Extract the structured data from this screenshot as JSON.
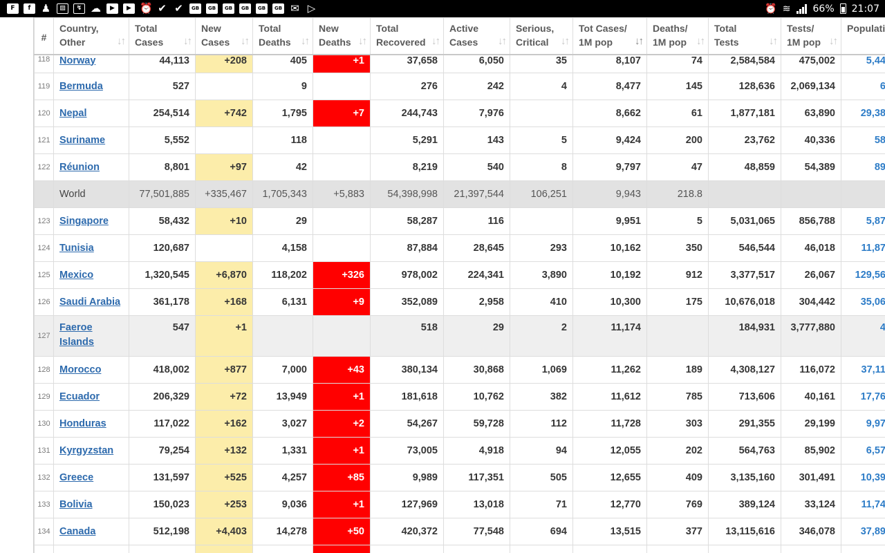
{
  "status_bar": {
    "left_icons": [
      "flipboard-icon",
      "facebook-icon",
      "person-icon",
      "gallery-icon",
      "missed-call-icon",
      "cloud-icon",
      "youtube-icon",
      "youtube-icon",
      "alarm-icon",
      "check-icon",
      "check-icon",
      "gb-icon",
      "gb-icon",
      "gb-icon",
      "gb-icon",
      "gb-icon",
      "gb-icon",
      "mail-icon",
      "play-store-icon"
    ],
    "battery": "66%",
    "time": "21:07"
  },
  "table": {
    "headers": [
      {
        "key": "num",
        "label": "#",
        "sortable": false
      },
      {
        "key": "country",
        "label": "Country,\nOther",
        "sortable": true
      },
      {
        "key": "total_cases",
        "label": "Total\nCases",
        "sortable": true
      },
      {
        "key": "new_cases",
        "label": "New\nCases",
        "sortable": true
      },
      {
        "key": "total_deaths",
        "label": "Total\nDeaths",
        "sortable": true
      },
      {
        "key": "new_deaths",
        "label": "New\nDeaths",
        "sortable": true
      },
      {
        "key": "total_recovered",
        "label": "Total\nRecovered",
        "sortable": true
      },
      {
        "key": "active_cases",
        "label": "Active\nCases",
        "sortable": true
      },
      {
        "key": "serious",
        "label": "Serious,\nCritical",
        "sortable": true
      },
      {
        "key": "cases_per_1m",
        "label": "Tot Cases/\n1M pop",
        "sortable": true,
        "active": true
      },
      {
        "key": "deaths_per_1m",
        "label": "Deaths/\n1M pop",
        "sortable": true
      },
      {
        "key": "total_tests",
        "label": "Total\nTests",
        "sortable": true
      },
      {
        "key": "tests_per_1m",
        "label": "Tests/\n1M pop",
        "sortable": true
      },
      {
        "key": "population",
        "label": "Populatio",
        "sortable": false
      }
    ],
    "rows": [
      {
        "num": "118",
        "country": "Norway",
        "total_cases": "44,113",
        "new_cases": "+208",
        "total_deaths": "405",
        "new_deaths": "+1",
        "total_recovered": "37,658",
        "active_cases": "6,050",
        "serious": "35",
        "cases_per_1m": "8,107",
        "deaths_per_1m": "74",
        "total_tests": "2,584,584",
        "tests_per_1m": "475,002",
        "population": "5,44",
        "type": "first"
      },
      {
        "num": "119",
        "country": "Bermuda",
        "total_cases": "527",
        "new_cases": "",
        "total_deaths": "9",
        "new_deaths": "",
        "total_recovered": "276",
        "active_cases": "242",
        "serious": "4",
        "cases_per_1m": "8,477",
        "deaths_per_1m": "145",
        "total_tests": "128,636",
        "tests_per_1m": "2,069,134",
        "population": "6"
      },
      {
        "num": "120",
        "country": "Nepal",
        "total_cases": "254,514",
        "new_cases": "+742",
        "total_deaths": "1,795",
        "new_deaths": "+7",
        "total_recovered": "244,743",
        "active_cases": "7,976",
        "serious": "",
        "cases_per_1m": "8,662",
        "deaths_per_1m": "61",
        "total_tests": "1,877,181",
        "tests_per_1m": "63,890",
        "population": "29,38"
      },
      {
        "num": "121",
        "country": "Suriname",
        "total_cases": "5,552",
        "new_cases": "",
        "total_deaths": "118",
        "new_deaths": "",
        "total_recovered": "5,291",
        "active_cases": "143",
        "serious": "5",
        "cases_per_1m": "9,424",
        "deaths_per_1m": "200",
        "total_tests": "23,762",
        "tests_per_1m": "40,336",
        "population": "58"
      },
      {
        "num": "122",
        "country": "Réunion",
        "total_cases": "8,801",
        "new_cases": "+97",
        "total_deaths": "42",
        "new_deaths": "",
        "total_recovered": "8,219",
        "active_cases": "540",
        "serious": "8",
        "cases_per_1m": "9,797",
        "deaths_per_1m": "47",
        "total_tests": "48,859",
        "tests_per_1m": "54,389",
        "population": "89"
      },
      {
        "num": "",
        "country": "World",
        "total_cases": "77,501,885",
        "new_cases": "+335,467",
        "total_deaths": "1,705,343",
        "new_deaths": "+5,883",
        "total_recovered": "54,398,998",
        "active_cases": "21,397,544",
        "serious": "106,251",
        "cases_per_1m": "9,943",
        "deaths_per_1m": "218.8",
        "total_tests": "",
        "tests_per_1m": "",
        "population": "",
        "type": "world"
      },
      {
        "num": "123",
        "country": "Singapore",
        "total_cases": "58,432",
        "new_cases": "+10",
        "total_deaths": "29",
        "new_deaths": "",
        "total_recovered": "58,287",
        "active_cases": "116",
        "serious": "",
        "cases_per_1m": "9,951",
        "deaths_per_1m": "5",
        "total_tests": "5,031,065",
        "tests_per_1m": "856,788",
        "population": "5,87"
      },
      {
        "num": "124",
        "country": "Tunisia",
        "total_cases": "120,687",
        "new_cases": "",
        "total_deaths": "4,158",
        "new_deaths": "",
        "total_recovered": "87,884",
        "active_cases": "28,645",
        "serious": "293",
        "cases_per_1m": "10,162",
        "deaths_per_1m": "350",
        "total_tests": "546,544",
        "tests_per_1m": "46,018",
        "population": "11,87"
      },
      {
        "num": "125",
        "country": "Mexico",
        "total_cases": "1,320,545",
        "new_cases": "+6,870",
        "total_deaths": "118,202",
        "new_deaths": "+326",
        "total_recovered": "978,002",
        "active_cases": "224,341",
        "serious": "3,890",
        "cases_per_1m": "10,192",
        "deaths_per_1m": "912",
        "total_tests": "3,377,517",
        "tests_per_1m": "26,067",
        "population": "129,56"
      },
      {
        "num": "126",
        "country": "Saudi Arabia",
        "total_cases": "361,178",
        "new_cases": "+168",
        "total_deaths": "6,131",
        "new_deaths": "+9",
        "total_recovered": "352,089",
        "active_cases": "2,958",
        "serious": "410",
        "cases_per_1m": "10,300",
        "deaths_per_1m": "175",
        "total_tests": "10,676,018",
        "tests_per_1m": "304,442",
        "population": "35,06"
      },
      {
        "num": "127",
        "country": "Faeroe Islands",
        "total_cases": "547",
        "new_cases": "+1",
        "total_deaths": "",
        "new_deaths": "",
        "total_recovered": "518",
        "active_cases": "29",
        "serious": "2",
        "cases_per_1m": "11,174",
        "deaths_per_1m": "",
        "total_tests": "184,931",
        "tests_per_1m": "3,777,880",
        "population": "4",
        "type": "grey tall"
      },
      {
        "num": "128",
        "country": "Morocco",
        "total_cases": "418,002",
        "new_cases": "+877",
        "total_deaths": "7,000",
        "new_deaths": "+43",
        "total_recovered": "380,134",
        "active_cases": "30,868",
        "serious": "1,069",
        "cases_per_1m": "11,262",
        "deaths_per_1m": "189",
        "total_tests": "4,308,127",
        "tests_per_1m": "116,072",
        "population": "37,11"
      },
      {
        "num": "129",
        "country": "Ecuador",
        "total_cases": "206,329",
        "new_cases": "+72",
        "total_deaths": "13,949",
        "new_deaths": "+1",
        "total_recovered": "181,618",
        "active_cases": "10,762",
        "serious": "382",
        "cases_per_1m": "11,612",
        "deaths_per_1m": "785",
        "total_tests": "713,606",
        "tests_per_1m": "40,161",
        "population": "17,76"
      },
      {
        "num": "130",
        "country": "Honduras",
        "total_cases": "117,022",
        "new_cases": "+162",
        "total_deaths": "3,027",
        "new_deaths": "+2",
        "total_recovered": "54,267",
        "active_cases": "59,728",
        "serious": "112",
        "cases_per_1m": "11,728",
        "deaths_per_1m": "303",
        "total_tests": "291,355",
        "tests_per_1m": "29,199",
        "population": "9,97"
      },
      {
        "num": "131",
        "country": "Kyrgyzstan",
        "total_cases": "79,254",
        "new_cases": "+132",
        "total_deaths": "1,331",
        "new_deaths": "+1",
        "total_recovered": "73,005",
        "active_cases": "4,918",
        "serious": "94",
        "cases_per_1m": "12,055",
        "deaths_per_1m": "202",
        "total_tests": "564,763",
        "tests_per_1m": "85,902",
        "population": "6,57"
      },
      {
        "num": "132",
        "country": "Greece",
        "total_cases": "131,597",
        "new_cases": "+525",
        "total_deaths": "4,257",
        "new_deaths": "+85",
        "total_recovered": "9,989",
        "active_cases": "117,351",
        "serious": "505",
        "cases_per_1m": "12,655",
        "deaths_per_1m": "409",
        "total_tests": "3,135,160",
        "tests_per_1m": "301,491",
        "population": "10,39"
      },
      {
        "num": "133",
        "country": "Bolivia",
        "total_cases": "150,023",
        "new_cases": "+253",
        "total_deaths": "9,036",
        "new_deaths": "+1",
        "total_recovered": "127,969",
        "active_cases": "13,018",
        "serious": "71",
        "cases_per_1m": "12,770",
        "deaths_per_1m": "769",
        "total_tests": "389,124",
        "tests_per_1m": "33,124",
        "population": "11,74"
      },
      {
        "num": "134",
        "country": "Canada",
        "total_cases": "512,198",
        "new_cases": "+4,403",
        "total_deaths": "14,278",
        "new_deaths": "+50",
        "total_recovered": "420,372",
        "active_cases": "77,548",
        "serious": "694",
        "cases_per_1m": "13,515",
        "deaths_per_1m": "377",
        "total_tests": "13,115,616",
        "tests_per_1m": "346,078",
        "population": "37,89"
      },
      {
        "num": "",
        "country": "",
        "total_cases": "",
        "new_cases": "",
        "total_deaths": "",
        "new_deaths": "",
        "total_recovered": "",
        "active_cases": "",
        "serious": "",
        "cases_per_1m": "",
        "deaths_per_1m": "",
        "total_tests": "",
        "tests_per_1m": "",
        "population": "",
        "type": "partial"
      }
    ]
  },
  "colors": {
    "new_cases_bg": "#fcedaa",
    "new_deaths_bg": "#ff0000",
    "link": "#2d6aad",
    "world_row_bg": "#e2e2e2"
  }
}
